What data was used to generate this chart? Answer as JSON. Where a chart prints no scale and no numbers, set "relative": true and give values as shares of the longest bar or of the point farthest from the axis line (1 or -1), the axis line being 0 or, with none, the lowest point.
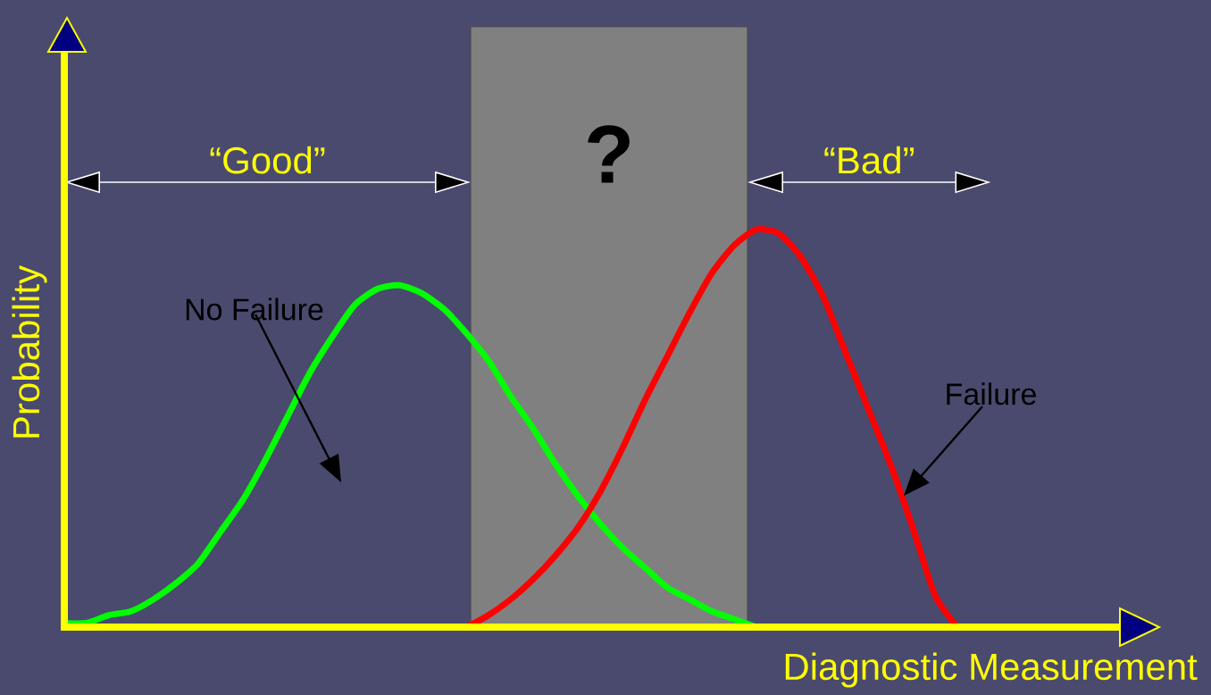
{
  "chart_data": {
    "type": "line",
    "relative": true,
    "xlabel": "Diagnostic Measurement",
    "ylabel": "Probability",
    "categories": [
      null,
      null,
      null,
      null,
      null,
      null,
      null,
      null,
      null,
      null,
      null,
      null,
      null,
      null,
      null,
      null,
      null,
      null,
      null,
      null,
      null,
      null,
      null,
      null,
      null,
      null,
      null,
      null,
      null,
      null,
      null,
      null,
      null,
      null,
      null,
      null,
      null,
      null,
      null,
      null,
      null,
      null,
      null,
      null,
      null,
      null,
      null,
      null
    ],
    "series": [
      {
        "name": "No Failure",
        "color": "#00ff00",
        "values": [
          0.01,
          0.01,
          0.03,
          0.04,
          0.07,
          0.11,
          0.16,
          0.24,
          0.32,
          0.42,
          0.53,
          0.64,
          0.73,
          0.81,
          0.85,
          0.86,
          0.84,
          0.8,
          0.74,
          0.67,
          0.58,
          0.5,
          0.41,
          0.33,
          0.26,
          0.2,
          0.15,
          0.1,
          0.07,
          0.04,
          0.02,
          0.0,
          null,
          null,
          null,
          null,
          null,
          null,
          null,
          null,
          null,
          null,
          null,
          null,
          null,
          null,
          null,
          null
        ]
      },
      {
        "name": "Failure",
        "color": "#ff0000",
        "values": [
          null,
          null,
          null,
          null,
          null,
          null,
          null,
          null,
          null,
          null,
          null,
          null,
          null,
          null,
          null,
          null,
          null,
          null,
          0.0,
          0.03,
          0.07,
          0.12,
          0.18,
          0.25,
          0.34,
          0.45,
          0.57,
          0.68,
          0.79,
          0.89,
          0.96,
          1.0,
          0.99,
          0.93,
          0.83,
          0.69,
          0.55,
          0.41,
          0.25,
          0.08,
          0.0,
          null,
          null,
          null,
          null,
          null,
          null,
          null
        ]
      }
    ],
    "annotations": [
      "“Good”",
      "“Bad”",
      "?"
    ]
  }
}
